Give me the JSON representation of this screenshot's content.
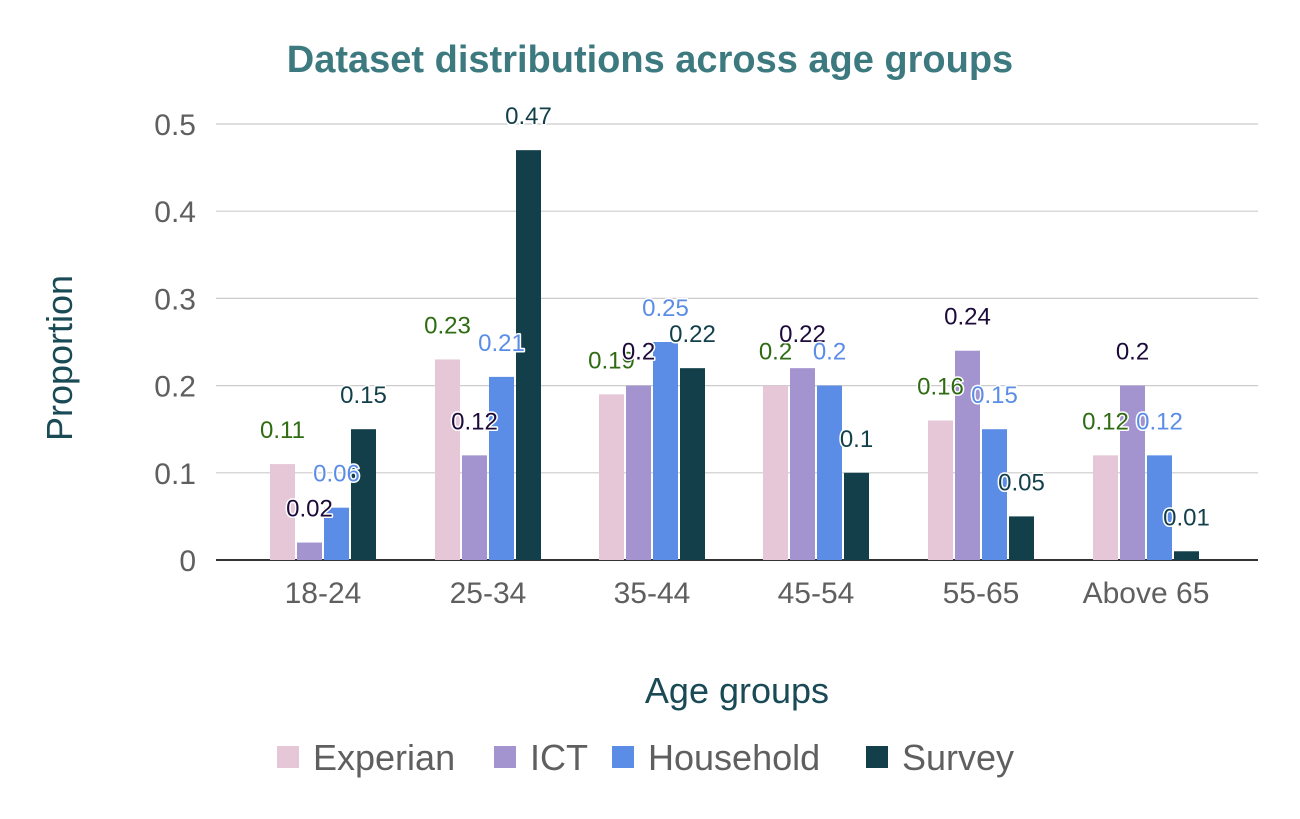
{
  "chart_data": {
    "type": "bar",
    "title": "Dataset distributions across age groups",
    "xlabel": "Age groups",
    "ylabel": "Proportion",
    "categories": [
      "18-24",
      "25-34",
      "35-44",
      "45-54",
      "55-65",
      "Above 65"
    ],
    "series": [
      {
        "name": "Experian",
        "color": "#e6c7d7",
        "label_color": "#2e6b12",
        "values": [
          0.11,
          0.23,
          0.19,
          0.2,
          0.16,
          0.12
        ]
      },
      {
        "name": "ICT",
        "color": "#a393cf",
        "label_color": "#1c0b3a",
        "values": [
          0.02,
          0.12,
          0.2,
          0.22,
          0.24,
          0.2
        ]
      },
      {
        "name": "Household",
        "color": "#5b8de6",
        "label_color": "#5b8de6",
        "values": [
          0.06,
          0.21,
          0.25,
          0.2,
          0.15,
          0.12
        ]
      },
      {
        "name": "Survey",
        "color": "#123f4a",
        "label_color": "#123f4a",
        "values": [
          0.15,
          0.47,
          0.22,
          0.1,
          0.05,
          0.01
        ]
      }
    ],
    "ylim": [
      0,
      0.5
    ],
    "yticks": [
      "0",
      "0.1",
      "0.2",
      "0.3",
      "0.4",
      "0.5"
    ],
    "grid": true,
    "legend_position": "bottom",
    "title_color": "#3d7a80"
  }
}
